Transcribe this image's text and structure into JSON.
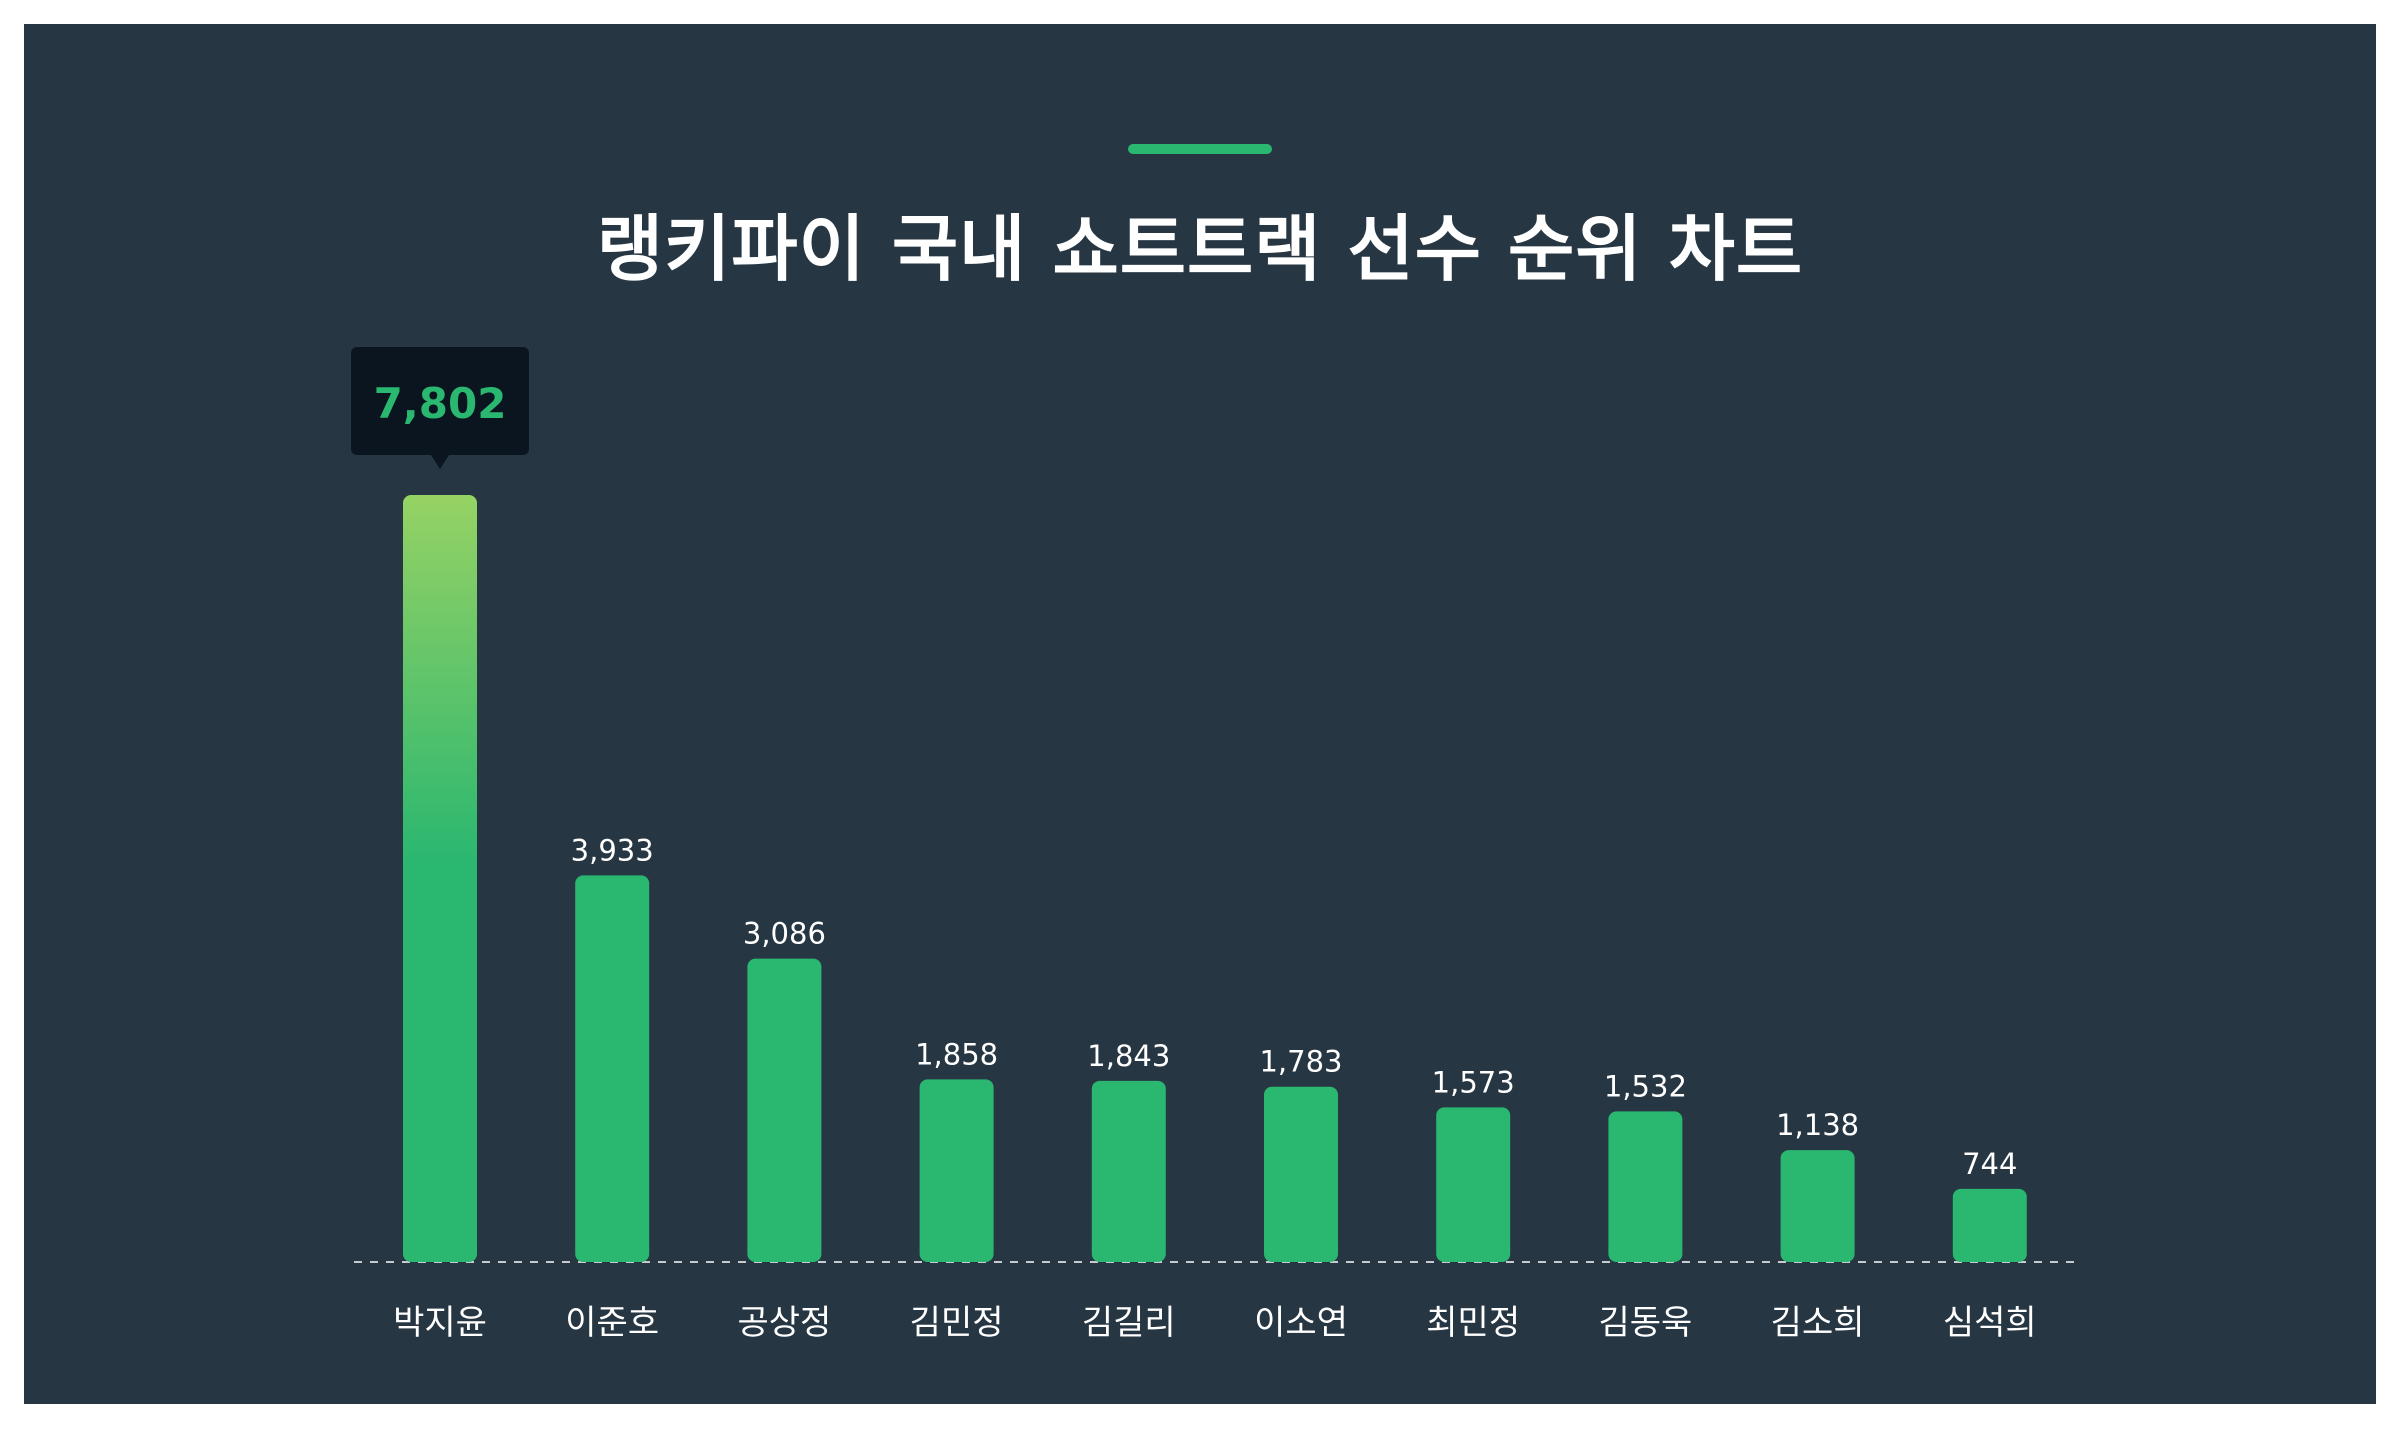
{
  "title": "랭키파이 국내 쇼트트랙 선수 순위 차트",
  "colors": {
    "background": "#263642",
    "bar": "#2ab770",
    "bar_top_highlight": "#96d264",
    "accent": "#2ab770",
    "label_text": "#ffffff",
    "tooltip_bg": "#0b1520",
    "tooltip_text": "#2ab770",
    "baseline": "#c8ccd0"
  },
  "chart_data": {
    "type": "bar",
    "title": "랭키파이 국내 쇼트트랙 선수 순위 차트",
    "categories": [
      "박지윤",
      "이준호",
      "공상정",
      "김민정",
      "김길리",
      "이소연",
      "최민정",
      "김동욱",
      "김소희",
      "심석희"
    ],
    "values": [
      7802,
      3933,
      3086,
      1858,
      1843,
      1783,
      1573,
      1532,
      1138,
      744
    ],
    "value_labels": [
      "7,802",
      "3,933",
      "3,086",
      "1,858",
      "1,843",
      "1,783",
      "1,573",
      "1,532",
      "1,138",
      "744"
    ],
    "highlighted_index": 0,
    "ylim": [
      0,
      7802
    ],
    "grid": false,
    "baseline": "dashed"
  }
}
